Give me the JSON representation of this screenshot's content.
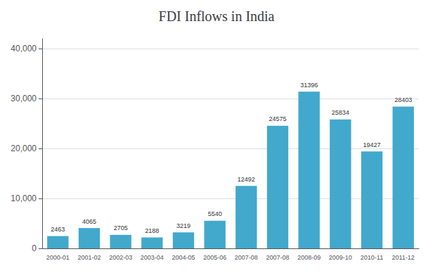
{
  "chart_data": {
    "type": "bar",
    "title": "FDI Inflows in India",
    "categories": [
      "2000-01",
      "2001-02",
      "2002-03",
      "2003-04",
      "2004-05",
      "2005-06",
      "2007-08",
      "2007-08",
      "2008-09",
      "2009-10",
      "2010-11",
      "2011-12"
    ],
    "values": [
      2463,
      4065,
      2705,
      2188,
      3219,
      5540,
      12492,
      24575,
      31396,
      25834,
      19427,
      28403
    ],
    "color": "#42a8cc",
    "ylim": [
      0,
      42000
    ],
    "yticks": [
      0,
      {
        "value": 10000,
        "label": "10,000"
      },
      {
        "value": 20000,
        "label": "20,000"
      },
      {
        "value": 30000,
        "label": "30,000"
      },
      {
        "value": 40000,
        "label": "40,000"
      }
    ],
    "grid": true,
    "data_labels": true
  }
}
